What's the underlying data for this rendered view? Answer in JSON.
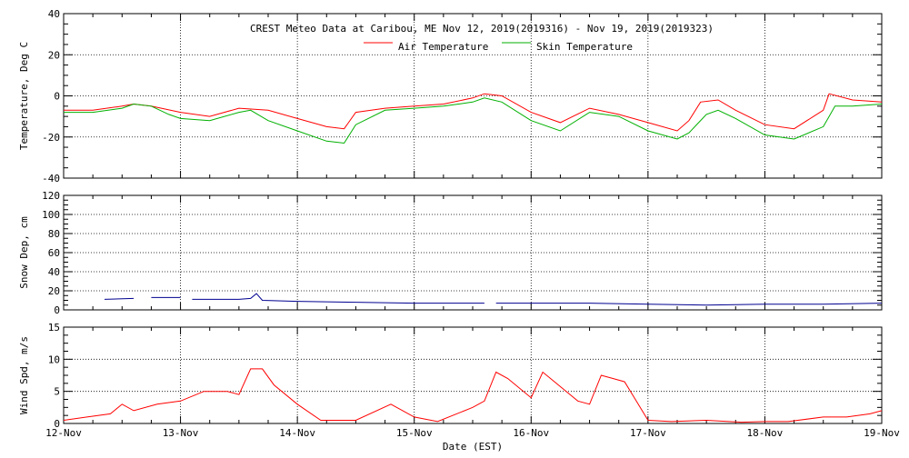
{
  "title": "CREST Meteo Data at Caribou, ME   Nov 12, 2019(2019316) - Nov 19, 2019(2019323)",
  "xlabel": "Date (EST)",
  "x_ticks": [
    "12-Nov",
    "13-Nov",
    "14-Nov",
    "15-Nov",
    "16-Nov",
    "17-Nov",
    "18-Nov",
    "19-Nov"
  ],
  "colors": {
    "air": "#ff0000",
    "skin": "#00b000",
    "snow": "#000090",
    "wind": "#ff0000"
  },
  "chart_data": [
    {
      "type": "line",
      "ylabel": "Temperature, Deg C",
      "ylim": [
        -40,
        40
      ],
      "yticks": [
        -40,
        -20,
        0,
        20,
        40
      ],
      "grid": true,
      "legend": "top-center",
      "series": [
        {
          "name": "Air Temperature",
          "x": [
            0,
            0.25,
            0.5,
            0.6,
            0.75,
            1.0,
            1.25,
            1.5,
            1.75,
            2.0,
            2.25,
            2.4,
            2.5,
            2.75,
            3.0,
            3.25,
            3.5,
            3.6,
            3.75,
            4.0,
            4.25,
            4.5,
            4.75,
            5.0,
            5.25,
            5.35,
            5.45,
            5.6,
            5.75,
            6.0,
            6.25,
            6.5,
            6.55,
            6.75,
            7.0
          ],
          "y": [
            -7,
            -7,
            -5,
            -4,
            -5,
            -8,
            -10,
            -6,
            -7,
            -11,
            -15,
            -16,
            -8,
            -6,
            -5,
            -4,
            -1,
            1,
            0,
            -8,
            -13,
            -6,
            -9,
            -13,
            -17,
            -12,
            -3,
            -2,
            -7,
            -14,
            -16,
            -7,
            1,
            -2,
            -3
          ]
        },
        {
          "name": "Skin Temperature",
          "x": [
            0,
            0.25,
            0.5,
            0.6,
            0.75,
            0.9,
            1.0,
            1.25,
            1.5,
            1.6,
            1.75,
            2.0,
            2.25,
            2.4,
            2.5,
            2.75,
            3.0,
            3.25,
            3.5,
            3.6,
            3.75,
            4.0,
            4.25,
            4.5,
            4.75,
            5.0,
            5.25,
            5.35,
            5.5,
            5.6,
            5.75,
            6.0,
            6.25,
            6.5,
            6.6,
            6.75,
            7.0
          ],
          "y": [
            -8,
            -8,
            -6,
            -4,
            -5,
            -9,
            -11,
            -12,
            -8,
            -7,
            -12,
            -17,
            -22,
            -23,
            -14,
            -7,
            -6,
            -5,
            -3,
            -1,
            -3,
            -12,
            -17,
            -8,
            -10,
            -17,
            -21,
            -18,
            -9,
            -7,
            -11,
            -19,
            -21,
            -15,
            -5,
            -5,
            -4
          ]
        }
      ]
    },
    {
      "type": "line",
      "ylabel": "Snow Dep, cm",
      "ylim": [
        0,
        120
      ],
      "yticks": [
        0,
        20,
        40,
        60,
        80,
        100,
        120
      ],
      "grid": true,
      "series": [
        {
          "name": "",
          "segments": [
            {
              "x": [
                0.35,
                0.6
              ],
              "y": [
                11,
                12
              ]
            },
            {
              "x": [
                0.75,
                1.0
              ],
              "y": [
                13,
                13
              ]
            },
            {
              "x": [
                1.1,
                1.5,
                1.6,
                1.65,
                1.7,
                2.0,
                2.5,
                3.0,
                3.6
              ],
              "y": [
                11,
                11,
                12,
                17,
                10,
                9,
                8,
                7,
                7
              ]
            },
            {
              "x": [
                3.7,
                4.5,
                5.0,
                5.5,
                6.0,
                6.5,
                7.0
              ],
              "y": [
                7,
                7,
                6,
                5,
                6,
                6,
                7
              ]
            }
          ]
        }
      ]
    },
    {
      "type": "line",
      "ylabel": "Wind Spd, m/s",
      "ylim": [
        0,
        15
      ],
      "yticks": [
        0,
        5,
        10,
        15
      ],
      "grid": true,
      "series": [
        {
          "name": "",
          "x": [
            0,
            0.2,
            0.4,
            0.5,
            0.6,
            0.8,
            1.0,
            1.2,
            1.4,
            1.5,
            1.6,
            1.7,
            1.8,
            2.0,
            2.2,
            2.5,
            2.8,
            3.0,
            3.2,
            3.5,
            3.6,
            3.7,
            3.8,
            4.0,
            4.1,
            4.2,
            4.3,
            4.4,
            4.5,
            4.6,
            4.7,
            4.8,
            4.9,
            5.0,
            5.2,
            5.5,
            5.8,
            6.0,
            6.2,
            6.5,
            6.7,
            6.9,
            7.0
          ],
          "y": [
            0.5,
            1.0,
            1.5,
            3.0,
            2.0,
            3.0,
            3.5,
            5.0,
            5.0,
            4.5,
            8.5,
            8.5,
            6.0,
            3.0,
            0.5,
            0.5,
            3.0,
            1.0,
            0.3,
            2.5,
            3.5,
            8.0,
            7.0,
            4.0,
            8.0,
            6.5,
            5.0,
            3.5,
            3.0,
            7.5,
            7.0,
            6.5,
            3.5,
            0.5,
            0.3,
            0.5,
            0.2,
            0.3,
            0.3,
            1.0,
            1.0,
            1.5,
            2.0
          ]
        }
      ]
    }
  ]
}
